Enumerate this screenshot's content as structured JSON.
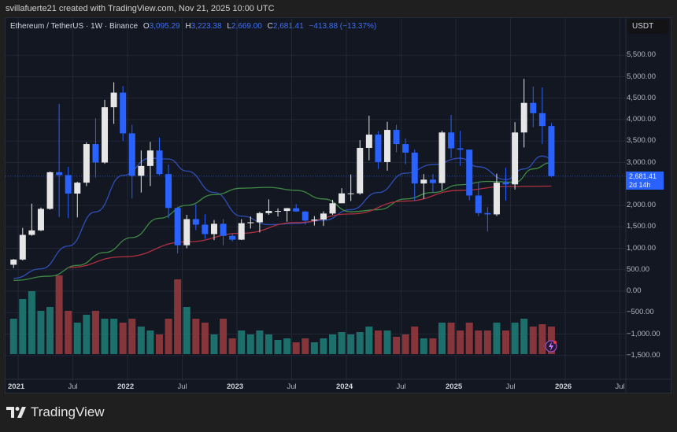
{
  "header": {
    "credit": "svillafuerte21 created with TradingView.com, Nov 21, 2025 10:00 UTC"
  },
  "legend": {
    "symbol": "Ethereum / TetherUS · 1W · Binance",
    "open_label": "O",
    "open": "3,095.29",
    "high_label": "H",
    "high": "3,223.38",
    "low_label": "L",
    "low": "2,669.00",
    "close_label": "C",
    "close": "2,681.41",
    "change": "−413.88 (−13.37%)"
  },
  "price_axis": {
    "currency": "USDT",
    "labels": [
      "5,500.00",
      "5,000.00",
      "4,500.00",
      "4,000.00",
      "3,500.00",
      "3,000.00",
      "2,000.00",
      "1,500.00",
      "1,000.00",
      "500.00",
      "0.00",
      "−500.00",
      "−1,000.00",
      "−1,500.00"
    ],
    "last_price": "2,681.41",
    "countdown": "2d 14h"
  },
  "time_axis": {
    "labels": [
      "2021",
      "Jul",
      "2022",
      "Jul",
      "2023",
      "Jul",
      "2024",
      "Jul",
      "2025",
      "Jul",
      "2026",
      "Jul"
    ]
  },
  "brand": {
    "name": "TradingView"
  },
  "colors": {
    "up": "#e6e6e6",
    "down": "#2962ff",
    "vol_up": "#1f7f78",
    "vol_down": "#9b3b3e",
    "ma_fast": "#2f4fb8",
    "ma_mid": "#3f8a45",
    "ma_slow": "#b03040",
    "accent": "#2962ff"
  },
  "chart_data": {
    "type": "candlestick",
    "interval_shown": "1W",
    "ylim": [
      -1500,
      5800
    ],
    "grid": true,
    "candles": [
      [
        "2020-12",
        616,
        750,
        540,
        737
      ],
      [
        "2021-01",
        737,
        1475,
        714,
        1312
      ],
      [
        "2021-02",
        1312,
        2040,
        1290,
        1417
      ],
      [
        "2021-03",
        1417,
        1950,
        1400,
        1919
      ],
      [
        "2021-04",
        1919,
        2790,
        1900,
        2773
      ],
      [
        "2021-05",
        2773,
        4370,
        1730,
        2706
      ],
      [
        "2021-06",
        2706,
        2900,
        1700,
        2275
      ],
      [
        "2021-07",
        2275,
        2550,
        1720,
        2530
      ],
      [
        "2021-08",
        2530,
        3470,
        2450,
        3430
      ],
      [
        "2021-09",
        3430,
        4030,
        2650,
        3000
      ],
      [
        "2021-10",
        3000,
        4460,
        2970,
        4290
      ],
      [
        "2021-11",
        4290,
        4870,
        3900,
        4630
      ],
      [
        "2021-12",
        4630,
        4780,
        3500,
        3680
      ],
      [
        "2022-01",
        3680,
        3880,
        2160,
        2690
      ],
      [
        "2022-02",
        2690,
        3280,
        2300,
        2920
      ],
      [
        "2022-03",
        2920,
        3480,
        2450,
        3280
      ],
      [
        "2022-04",
        3280,
        3580,
        2700,
        2730
      ],
      [
        "2022-05",
        2730,
        2950,
        1700,
        1940
      ],
      [
        "2022-06",
        1940,
        1970,
        880,
        1070
      ],
      [
        "2022-07",
        1070,
        1780,
        1000,
        1680
      ],
      [
        "2022-08",
        1680,
        2020,
        1420,
        1550
      ],
      [
        "2022-09",
        1550,
        1790,
        1220,
        1330
      ],
      [
        "2022-10",
        1330,
        1660,
        1190,
        1570
      ],
      [
        "2022-11",
        1570,
        1680,
        1070,
        1290
      ],
      [
        "2022-12",
        1290,
        1350,
        1160,
        1200
      ],
      [
        "2023-01",
        1200,
        1680,
        1190,
        1585
      ],
      [
        "2023-02",
        1585,
        1740,
        1460,
        1605
      ],
      [
        "2023-03",
        1605,
        1850,
        1370,
        1820
      ],
      [
        "2023-04",
        1820,
        2140,
        1780,
        1870
      ],
      [
        "2023-05",
        1870,
        1930,
        1740,
        1870
      ],
      [
        "2023-06",
        1870,
        1940,
        1620,
        1934
      ],
      [
        "2023-07",
        1934,
        2030,
        1850,
        1857
      ],
      [
        "2023-08",
        1857,
        1870,
        1550,
        1645
      ],
      [
        "2023-09",
        1645,
        1750,
        1530,
        1670
      ],
      [
        "2023-10",
        1670,
        1860,
        1520,
        1810
      ],
      [
        "2023-11",
        1810,
        2130,
        1780,
        2050
      ],
      [
        "2023-12",
        2050,
        2400,
        2050,
        2280
      ],
      [
        "2024-01",
        2280,
        2720,
        2100,
        2280
      ],
      [
        "2024-02",
        2280,
        3520,
        2250,
        3340
      ],
      [
        "2024-03",
        3340,
        4090,
        3050,
        3650
      ],
      [
        "2024-04",
        3650,
        3730,
        2850,
        3010
      ],
      [
        "2024-05",
        3010,
        3950,
        2810,
        3760
      ],
      [
        "2024-06",
        3760,
        3880,
        3240,
        3430
      ],
      [
        "2024-07",
        3430,
        3560,
        2960,
        3230
      ],
      [
        "2024-08",
        3230,
        3300,
        2110,
        2510
      ],
      [
        "2024-09",
        2510,
        2730,
        2150,
        2600
      ],
      [
        "2024-10",
        2600,
        2730,
        2300,
        2520
      ],
      [
        "2024-11",
        2520,
        3740,
        2360,
        3700
      ],
      [
        "2024-12",
        3700,
        4110,
        3100,
        3330
      ],
      [
        "2025-01",
        3330,
        3740,
        2920,
        3300
      ],
      [
        "2025-02",
        3300,
        3300,
        2120,
        2230
      ],
      [
        "2025-03",
        2230,
        2550,
        1750,
        1820
      ],
      [
        "2025-04",
        1820,
        1960,
        1390,
        1790
      ],
      [
        "2025-05",
        1790,
        2740,
        1750,
        2530
      ],
      [
        "2025-06",
        2530,
        2880,
        2110,
        2490
      ],
      [
        "2025-07",
        2490,
        3940,
        2370,
        3700
      ],
      [
        "2025-08",
        3700,
        4950,
        3350,
        4390
      ],
      [
        "2025-09",
        4390,
        4770,
        3820,
        4150
      ],
      [
        "2025-10",
        4150,
        4750,
        3430,
        3850
      ],
      [
        "2025-11",
        3850,
        3920,
        2660,
        2681.41
      ]
    ],
    "volume": [
      45,
      70,
      80,
      55,
      60,
      100,
      55,
      40,
      50,
      55,
      45,
      45,
      40,
      45,
      35,
      30,
      25,
      45,
      95,
      60,
      45,
      40,
      25,
      45,
      20,
      30,
      25,
      30,
      25,
      18,
      20,
      15,
      20,
      15,
      20,
      25,
      28,
      25,
      28,
      35,
      30,
      30,
      22,
      25,
      35,
      20,
      20,
      40,
      40,
      30,
      40,
      30,
      30,
      40,
      30,
      40,
      45,
      35,
      38,
      35
    ],
    "moving_averages": [
      {
        "points": [
          [
            "2020-12",
            300
          ],
          [
            "2021-03",
            520
          ],
          [
            "2021-06",
            1050
          ],
          [
            "2021-09",
            1850
          ],
          [
            "2021-12",
            2700
          ],
          [
            "2022-03",
            3100
          ],
          [
            "2022-05",
            3080
          ],
          [
            "2022-07",
            2800
          ],
          [
            "2022-10",
            2300
          ],
          [
            "2023-01",
            1750
          ],
          [
            "2023-04",
            1550
          ],
          [
            "2023-07",
            1580
          ],
          [
            "2023-10",
            1650
          ],
          [
            "2024-01",
            1900
          ],
          [
            "2024-04",
            2300
          ],
          [
            "2024-07",
            2750
          ],
          [
            "2024-10",
            2950
          ],
          [
            "2025-01",
            3100
          ],
          [
            "2025-03",
            2900
          ],
          [
            "2025-06",
            2600
          ],
          [
            "2025-08",
            2850
          ],
          [
            "2025-10",
            3150
          ],
          [
            "2025-11",
            3100
          ]
        ]
      },
      {
        "points": [
          [
            "2020-12",
            250
          ],
          [
            "2021-04",
            350
          ],
          [
            "2021-07",
            600
          ],
          [
            "2021-10",
            900
          ],
          [
            "2022-01",
            1250
          ],
          [
            "2022-04",
            1700
          ],
          [
            "2022-07",
            2000
          ],
          [
            "2022-10",
            2250
          ],
          [
            "2023-01",
            2400
          ],
          [
            "2023-04",
            2420
          ],
          [
            "2023-07",
            2350
          ],
          [
            "2023-10",
            2150
          ],
          [
            "2024-01",
            1850
          ],
          [
            "2024-04",
            1900
          ],
          [
            "2024-07",
            2150
          ],
          [
            "2024-10",
            2300
          ],
          [
            "2025-01",
            2480
          ],
          [
            "2025-04",
            2560
          ],
          [
            "2025-07",
            2540
          ],
          [
            "2025-09",
            2850
          ],
          [
            "2025-11",
            3000
          ]
        ]
      },
      {
        "points": [
          [
            "2021-06",
            550
          ],
          [
            "2021-12",
            800
          ],
          [
            "2022-07",
            1150
          ],
          [
            "2023-01",
            1350
          ],
          [
            "2023-07",
            1600
          ],
          [
            "2024-01",
            1800
          ],
          [
            "2024-07",
            2100
          ],
          [
            "2025-01",
            2350
          ],
          [
            "2025-06",
            2440
          ],
          [
            "2025-11",
            2450
          ]
        ]
      }
    ]
  }
}
